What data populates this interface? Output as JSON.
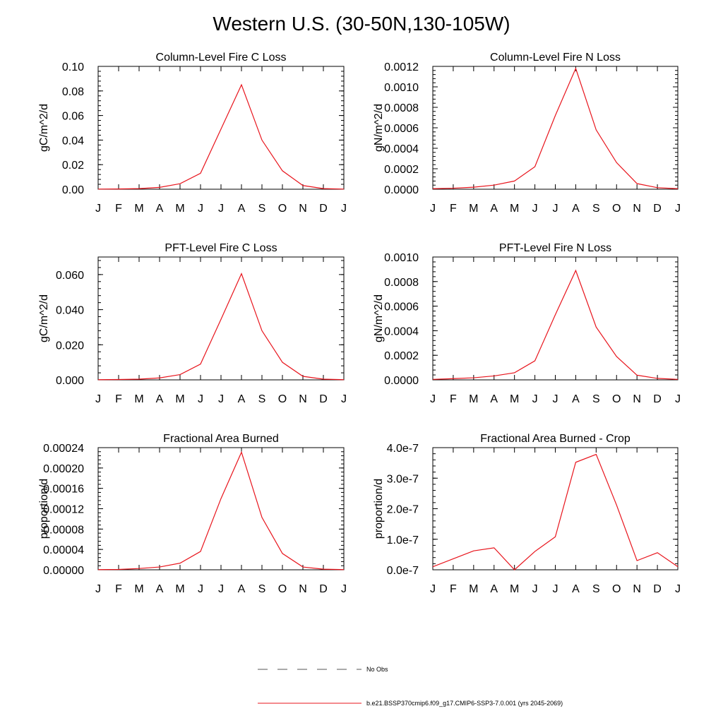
{
  "page": {
    "title": "Western U.S. (30-50N,130-105W)"
  },
  "legend": {
    "items": [
      {
        "label": "No Obs",
        "color": "#555555",
        "dash": "dashed"
      },
      {
        "label": "b.e21.BSSP370cmip6.f09_g17.CMIP6-SSP3-7.0.001 (yrs 2045-2069)",
        "color": "#e8141c",
        "dash": "solid"
      }
    ]
  },
  "chart_data": [
    {
      "type": "line",
      "title": "Column-Level Fire C Loss",
      "ylabel": "gC/m^2/d",
      "x": [
        "J",
        "F",
        "M",
        "A",
        "M",
        "J",
        "J",
        "A",
        "S",
        "O",
        "N",
        "D",
        "J"
      ],
      "ylim": [
        0,
        0.1
      ],
      "yticks": [
        "0.00",
        "0.02",
        "0.04",
        "0.06",
        "0.08",
        "0.10"
      ],
      "series": [
        {
          "color": "#e8141c",
          "values": [
            0.0001,
            0.0002,
            0.0005,
            0.0015,
            0.0045,
            0.013,
            0.049,
            0.085,
            0.04,
            0.015,
            0.003,
            0.0005,
            0.0001
          ]
        }
      ]
    },
    {
      "type": "line",
      "title": "Column-Level Fire N Loss",
      "ylabel": "gN/m^2/d",
      "x": [
        "J",
        "F",
        "M",
        "A",
        "M",
        "J",
        "J",
        "A",
        "S",
        "O",
        "N",
        "D",
        "J"
      ],
      "ylim": [
        0,
        0.0012
      ],
      "yticks": [
        "0.0000",
        "0.0002",
        "0.0004",
        "0.0006",
        "0.0008",
        "0.0010",
        "0.0012"
      ],
      "series": [
        {
          "color": "#e8141c",
          "values": [
            5e-06,
            1e-05,
            2e-05,
            4e-05,
            8e-05,
            0.00022,
            0.00072,
            0.00118,
            0.00058,
            0.00026,
            5.5e-05,
            1.5e-05,
            5e-06
          ]
        }
      ]
    },
    {
      "type": "line",
      "title": "PFT-Level Fire C Loss",
      "ylabel": "gC/m^2/d",
      "x": [
        "J",
        "F",
        "M",
        "A",
        "M",
        "J",
        "J",
        "A",
        "S",
        "O",
        "N",
        "D",
        "J"
      ],
      "ylim": [
        0,
        0.07
      ],
      "yticks": [
        "0.000",
        "0.020",
        "0.040",
        "0.060"
      ],
      "ytick_values": [
        0,
        0.02,
        0.04,
        0.06
      ],
      "series": [
        {
          "color": "#e8141c",
          "values": [
            0.0001,
            0.0002,
            0.0004,
            0.0011,
            0.003,
            0.009,
            0.0345,
            0.0605,
            0.028,
            0.01,
            0.002,
            0.0004,
            0.0001
          ]
        }
      ]
    },
    {
      "type": "line",
      "title": "PFT-Level Fire N Loss",
      "ylabel": "gN/m^2/d",
      "x": [
        "J",
        "F",
        "M",
        "A",
        "M",
        "J",
        "J",
        "A",
        "S",
        "O",
        "N",
        "D",
        "J"
      ],
      "ylim": [
        0,
        0.001
      ],
      "yticks": [
        "0.0000",
        "0.0002",
        "0.0004",
        "0.0006",
        "0.0008",
        "0.0010"
      ],
      "series": [
        {
          "color": "#e8141c",
          "values": [
            4e-06,
            1e-05,
            1.7e-05,
            3.2e-05,
            5.8e-05,
            0.000155,
            0.00053,
            0.00089,
            0.00043,
            0.00019,
            3.8e-05,
            1.2e-05,
            4e-06
          ]
        }
      ]
    },
    {
      "type": "line",
      "title": "Fractional Area Burned",
      "ylabel": "proportion/d",
      "x": [
        "J",
        "F",
        "M",
        "A",
        "M",
        "J",
        "J",
        "A",
        "S",
        "O",
        "N",
        "D",
        "J"
      ],
      "ylim": [
        0,
        0.00024
      ],
      "yticks": [
        "0.00000",
        "0.00004",
        "0.00008",
        "0.00012",
        "0.00016",
        "0.00020",
        "0.00024"
      ],
      "series": [
        {
          "color": "#e8141c",
          "values": [
            3e-07,
            7e-07,
            2.5e-06,
            5.5e-06,
            1.3e-05,
            3.6e-05,
            0.00014,
            0.000231,
            0.000103,
            3.2e-05,
            5.5e-06,
            1.2e-06,
            3e-07
          ]
        }
      ]
    },
    {
      "type": "line",
      "title": "Fractional Area Burned - Crop",
      "ylabel": "proportion/d",
      "x": [
        "J",
        "F",
        "M",
        "A",
        "M",
        "J",
        "J",
        "A",
        "S",
        "O",
        "N",
        "D",
        "J"
      ],
      "ylim": [
        0,
        4e-07
      ],
      "yticks": [
        "0.0e-7",
        "1.0e-7",
        "2.0e-7",
        "3.0e-7",
        "4.0e-7"
      ],
      "series": [
        {
          "color": "#e8141c",
          "values": [
            1e-08,
            3.6e-08,
            6.2e-08,
            7.2e-08,
            0.0,
            6e-08,
            1.08e-07,
            3.52e-07,
            3.78e-07,
            2.12e-07,
            3e-08,
            5.6e-08,
            1e-08
          ]
        }
      ]
    }
  ]
}
